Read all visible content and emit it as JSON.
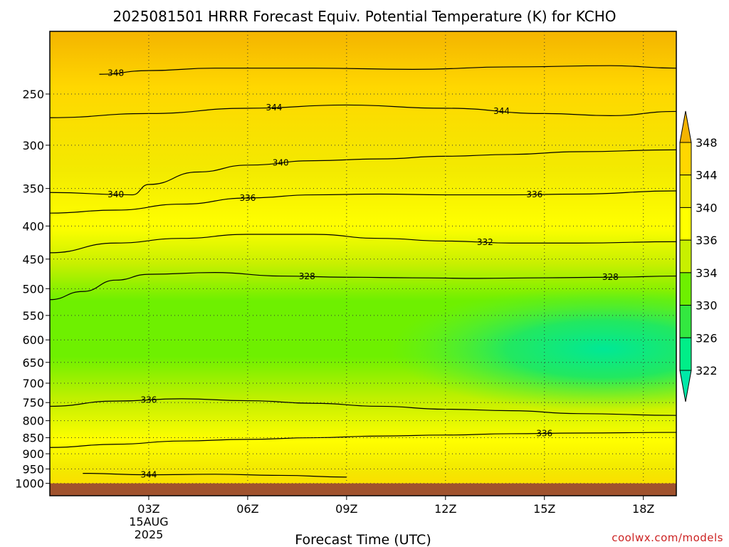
{
  "chart_data": {
    "type": "heatmap",
    "title": "2025081501 HRRR Forecast Equiv. Potential Temperature (K) for KCHO",
    "xlabel": "Forecast Time (UTC)",
    "credit": "coolwx.com/models",
    "date_label": [
      "15AUG",
      "2025"
    ],
    "x_range_hours": [
      0,
      19
    ],
    "x_ticks": [
      {
        "hour": 3,
        "label": "03Z"
      },
      {
        "hour": 6,
        "label": "06Z"
      },
      {
        "hour": 9,
        "label": "09Z"
      },
      {
        "hour": 12,
        "label": "12Z"
      },
      {
        "hour": 15,
        "label": "15Z"
      },
      {
        "hour": 18,
        "label": "18Z"
      }
    ],
    "y_axis_pressure_hPa": {
      "range": [
        1045,
        200
      ],
      "ticks": [
        250,
        300,
        350,
        400,
        450,
        500,
        550,
        600,
        650,
        700,
        750,
        800,
        850,
        900,
        950,
        1000
      ],
      "ground_level": 1000
    },
    "colorbar": {
      "labels": [
        348,
        344,
        340,
        336,
        334,
        330,
        326,
        322
      ],
      "colors": [
        "#f4b400",
        "#ffd700",
        "#f3ea00",
        "#ffff00",
        "#c8f000",
        "#6ef000",
        "#33e840",
        "#00ee88",
        "#00e8a8"
      ]
    },
    "contours": [
      {
        "level": 348,
        "points": [
          [
            1.5,
            233
          ],
          [
            3,
            230
          ],
          [
            5,
            228
          ],
          [
            8,
            228
          ],
          [
            11,
            229
          ],
          [
            14,
            227
          ],
          [
            17,
            226
          ],
          [
            19,
            228
          ]
        ],
        "labels": [
          {
            "text": "348",
            "hour": 2.0
          }
        ]
      },
      {
        "level": 344,
        "points": [
          [
            0,
            272
          ],
          [
            3,
            268
          ],
          [
            6,
            263
          ],
          [
            9,
            260
          ],
          [
            12,
            263
          ],
          [
            15,
            268
          ],
          [
            17,
            270
          ],
          [
            19,
            266
          ]
        ],
        "labels": [
          {
            "text": "344",
            "hour": 6.8
          },
          {
            "text": "344",
            "hour": 13.7
          }
        ]
      },
      {
        "level": 340,
        "points": [
          [
            0,
            355
          ],
          [
            2.5,
            358
          ],
          [
            3,
            345
          ],
          [
            4.5,
            330
          ],
          [
            6,
            322
          ],
          [
            8,
            317
          ],
          [
            10,
            315
          ],
          [
            12,
            312
          ],
          [
            14,
            310
          ],
          [
            16,
            307
          ],
          [
            19,
            305
          ]
        ],
        "labels": [
          {
            "text": "340",
            "hour": 7.0
          },
          {
            "text": "340",
            "hour": 2.0
          }
        ]
      },
      {
        "level": 336,
        "points": [
          [
            0,
            382
          ],
          [
            2,
            378
          ],
          [
            4,
            370
          ],
          [
            6,
            362
          ],
          [
            8,
            358
          ],
          [
            10,
            357
          ],
          [
            12,
            358
          ],
          [
            14,
            358
          ],
          [
            16,
            357
          ],
          [
            19,
            353
          ]
        ],
        "labels": [
          {
            "text": "336",
            "hour": 6.0
          },
          {
            "text": "336",
            "hour": 14.7
          }
        ]
      },
      {
        "level": 332,
        "points": [
          [
            0,
            440
          ],
          [
            2,
            425
          ],
          [
            4,
            418
          ],
          [
            6,
            412
          ],
          [
            8,
            412
          ],
          [
            10,
            418
          ],
          [
            12,
            422
          ],
          [
            14,
            425
          ],
          [
            16,
            425
          ],
          [
            19,
            423
          ]
        ],
        "labels": [
          {
            "text": "332",
            "hour": 13.2
          }
        ]
      },
      {
        "level": 328,
        "points": [
          [
            0,
            520
          ],
          [
            1,
            505
          ],
          [
            2,
            485
          ],
          [
            3,
            475
          ],
          [
            5,
            472
          ],
          [
            7,
            478
          ],
          [
            9,
            480
          ],
          [
            11,
            481
          ],
          [
            13,
            482
          ],
          [
            15,
            481
          ],
          [
            17,
            480
          ],
          [
            19,
            478
          ]
        ],
        "labels": [
          {
            "text": "328",
            "hour": 7.8
          },
          {
            "text": "328",
            "hour": 17.0
          }
        ]
      },
      {
        "level": 336,
        "points": [
          [
            0,
            760
          ],
          [
            2,
            746
          ],
          [
            4,
            740
          ],
          [
            6,
            745
          ],
          [
            8,
            752
          ],
          [
            10,
            760
          ],
          [
            12,
            768
          ],
          [
            14,
            772
          ],
          [
            16,
            780
          ],
          [
            19,
            785
          ]
        ],
        "labels": [
          {
            "text": "336",
            "hour": 3.0
          }
        ]
      },
      {
        "level": 336,
        "points": [
          [
            0,
            880
          ],
          [
            2,
            870
          ],
          [
            4,
            860
          ],
          [
            6,
            855
          ],
          [
            8,
            850
          ],
          [
            10,
            845
          ],
          [
            12,
            842
          ],
          [
            14,
            838
          ],
          [
            16,
            836
          ],
          [
            19,
            834
          ]
        ],
        "labels": [
          {
            "text": "336",
            "hour": 15.0
          }
        ]
      },
      {
        "level": 344,
        "points": [
          [
            1,
            965
          ],
          [
            3,
            970
          ],
          [
            5,
            968
          ],
          [
            7,
            972
          ],
          [
            9,
            978
          ]
        ],
        "labels": [
          {
            "text": "344",
            "hour": 3.0
          }
        ]
      }
    ]
  }
}
